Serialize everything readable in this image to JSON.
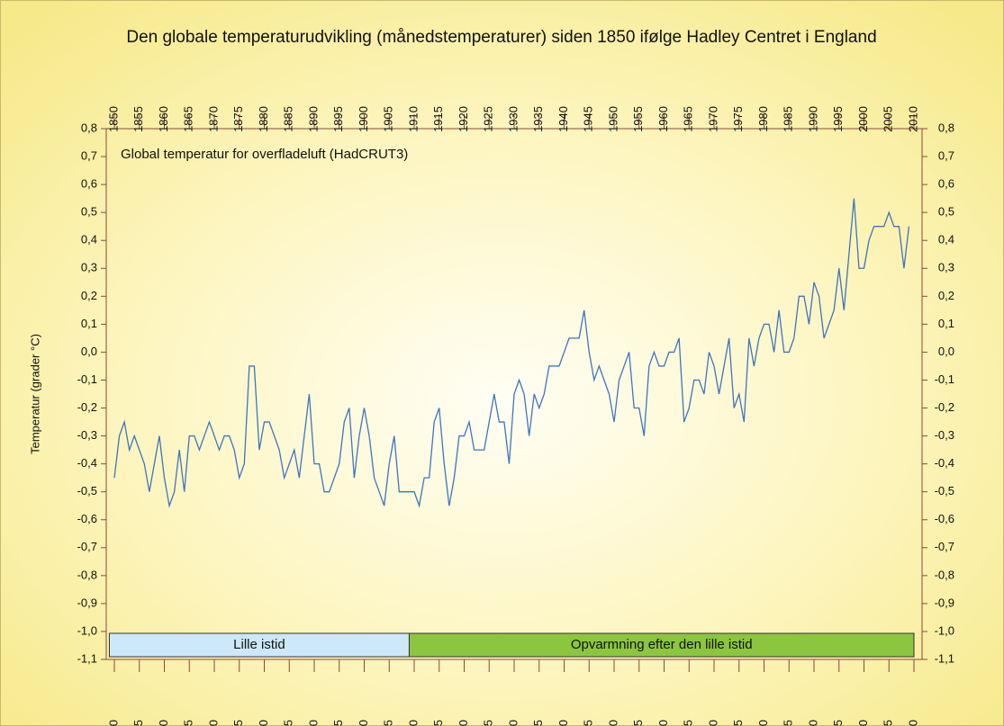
{
  "chart_data": {
    "type": "line",
    "title": "Den globale temperaturudvikling (månedstemperaturer) siden 1850 ifølge Hadley Centret i England",
    "annotation": "Global temperatur for overfladeluft (HadCRUT3)",
    "y_label": "Temperatur (grader °C)",
    "x": [
      1850,
      1851,
      1852,
      1853,
      1854,
      1855,
      1856,
      1857,
      1858,
      1859,
      1860,
      1861,
      1862,
      1863,
      1864,
      1865,
      1866,
      1867,
      1868,
      1869,
      1870,
      1871,
      1872,
      1873,
      1874,
      1875,
      1876,
      1877,
      1878,
      1879,
      1880,
      1881,
      1882,
      1883,
      1884,
      1885,
      1886,
      1887,
      1888,
      1889,
      1890,
      1891,
      1892,
      1893,
      1894,
      1895,
      1896,
      1897,
      1898,
      1899,
      1900,
      1901,
      1902,
      1903,
      1904,
      1905,
      1906,
      1907,
      1908,
      1909,
      1910,
      1911,
      1912,
      1913,
      1914,
      1915,
      1916,
      1917,
      1918,
      1919,
      1920,
      1921,
      1922,
      1923,
      1924,
      1925,
      1926,
      1927,
      1928,
      1929,
      1930,
      1931,
      1932,
      1933,
      1934,
      1935,
      1936,
      1937,
      1938,
      1939,
      1940,
      1941,
      1942,
      1943,
      1944,
      1945,
      1946,
      1947,
      1948,
      1949,
      1950,
      1951,
      1952,
      1953,
      1954,
      1955,
      1956,
      1957,
      1958,
      1959,
      1960,
      1961,
      1962,
      1963,
      1964,
      1965,
      1966,
      1967,
      1968,
      1969,
      1970,
      1971,
      1972,
      1973,
      1974,
      1975,
      1976,
      1977,
      1978,
      1979,
      1980,
      1981,
      1982,
      1983,
      1984,
      1985,
      1986,
      1987,
      1988,
      1989,
      1990,
      1991,
      1992,
      1993,
      1994,
      1995,
      1996,
      1997,
      1998,
      1999,
      2000,
      2001,
      2002,
      2003,
      2004,
      2005,
      2006,
      2007,
      2008,
      2009
    ],
    "series": [
      {
        "color": "#3f74c0",
        "values": [
          -0.45,
          -0.3,
          -0.25,
          -0.35,
          -0.3,
          -0.35,
          -0.4,
          -0.5,
          -0.4,
          -0.3,
          -0.45,
          -0.55,
          -0.5,
          -0.35,
          -0.5,
          -0.3,
          -0.3,
          -0.35,
          -0.3,
          -0.25,
          -0.3,
          -0.35,
          -0.3,
          -0.3,
          -0.35,
          -0.45,
          -0.4,
          -0.05,
          -0.05,
          -0.35,
          -0.25,
          -0.25,
          -0.3,
          -0.35,
          -0.45,
          -0.4,
          -0.35,
          -0.45,
          -0.3,
          -0.15,
          -0.4,
          -0.4,
          -0.5,
          -0.5,
          -0.45,
          -0.4,
          -0.25,
          -0.2,
          -0.45,
          -0.3,
          -0.2,
          -0.3,
          -0.45,
          -0.5,
          -0.55,
          -0.4,
          -0.3,
          -0.5,
          -0.5,
          -0.5,
          -0.5,
          -0.55,
          -0.45,
          -0.45,
          -0.25,
          -0.2,
          -0.4,
          -0.55,
          -0.45,
          -0.3,
          -0.3,
          -0.25,
          -0.35,
          -0.35,
          -0.35,
          -0.25,
          -0.15,
          -0.25,
          -0.25,
          -0.4,
          -0.15,
          -0.1,
          -0.15,
          -0.3,
          -0.15,
          -0.2,
          -0.15,
          -0.05,
          -0.05,
          -0.05,
          0.0,
          0.05,
          0.05,
          0.05,
          0.15,
          0.0,
          -0.1,
          -0.05,
          -0.1,
          -0.15,
          -0.25,
          -0.1,
          -0.05,
          0.0,
          -0.2,
          -0.2,
          -0.3,
          -0.05,
          0.0,
          -0.05,
          -0.05,
          0.0,
          0.0,
          0.05,
          -0.25,
          -0.2,
          -0.1,
          -0.1,
          -0.15,
          0.0,
          -0.05,
          -0.15,
          -0.05,
          0.05,
          -0.2,
          -0.15,
          -0.25,
          0.05,
          -0.05,
          0.05,
          0.1,
          0.1,
          0.0,
          0.15,
          0.0,
          0.0,
          0.05,
          0.2,
          0.2,
          0.1,
          0.25,
          0.2,
          0.05,
          0.1,
          0.15,
          0.3,
          0.15,
          0.35,
          0.55,
          0.3,
          0.3,
          0.4,
          0.45,
          0.45,
          0.45,
          0.5,
          0.45,
          0.45,
          0.3,
          0.45
        ]
      }
    ],
    "xlim": [
      1850,
      2010
    ],
    "xticks": [
      1850,
      1855,
      1860,
      1865,
      1870,
      1875,
      1880,
      1885,
      1890,
      1895,
      1900,
      1905,
      1910,
      1915,
      1920,
      1925,
      1930,
      1935,
      1940,
      1945,
      1950,
      1955,
      1960,
      1965,
      1970,
      1975,
      1980,
      1985,
      1990,
      1995,
      2000,
      2005,
      2010
    ],
    "ylim": [
      -1.1,
      0.8
    ],
    "yticks": [
      {
        "value": -1.1,
        "label": "-1,1"
      },
      {
        "value": -1.0,
        "label": "-1,0"
      },
      {
        "value": -0.9,
        "label": "-0,9"
      },
      {
        "value": -0.8,
        "label": "-0,8"
      },
      {
        "value": -0.7,
        "label": "-0,7"
      },
      {
        "value": -0.6,
        "label": "-0,6"
      },
      {
        "value": -0.5,
        "label": "-0,5"
      },
      {
        "value": -0.4,
        "label": "-0,4"
      },
      {
        "value": -0.3,
        "label": "-0,3"
      },
      {
        "value": -0.2,
        "label": "-0,2"
      },
      {
        "value": -0.1,
        "label": "-0,1"
      },
      {
        "value": 0,
        "label": "0,0"
      },
      {
        "value": 0.1,
        "label": "0,1"
      },
      {
        "value": 0.2,
        "label": "0,2"
      },
      {
        "value": 0.3,
        "label": "0,3"
      },
      {
        "value": 0.4,
        "label": "0,4"
      },
      {
        "value": 0.5,
        "label": "0,5"
      },
      {
        "value": 0.6,
        "label": "0,6"
      },
      {
        "value": 0.7,
        "label": "0,7"
      },
      {
        "value": 0.8,
        "label": "0,8"
      }
    ],
    "periods": [
      {
        "label": "Lille istid",
        "start": 1849,
        "end": 1909,
        "color": "#cde8f8"
      },
      {
        "label": "Opvarmning efter den lille istid",
        "start": 1909,
        "end": 2010,
        "color": "#8cc63f"
      }
    ]
  }
}
